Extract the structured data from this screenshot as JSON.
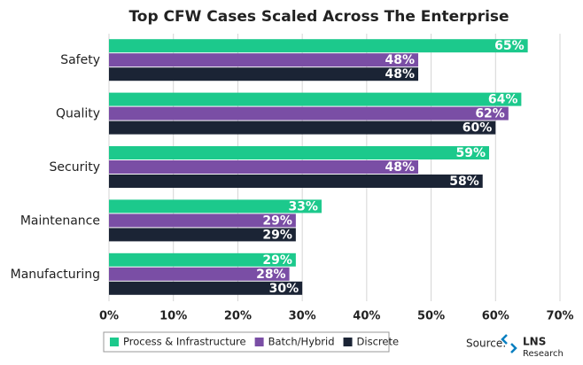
{
  "chart_data": {
    "type": "hbar",
    "title": "Top CFW Cases Scaled Across The Enterprise",
    "categories": [
      "Safety",
      "Quality",
      "Security",
      "Maintenance",
      "Manufacturing"
    ],
    "series": [
      {
        "name": "Process & Infrastructure",
        "color": "#1cc98c",
        "values": [
          65,
          64,
          59,
          33,
          29
        ],
        "value_labels": [
          "65%",
          "64%",
          "59%",
          "33%",
          "29%"
        ]
      },
      {
        "name": "Batch/Hybrid",
        "color": "#7a4ea5",
        "values": [
          48,
          62,
          48,
          29,
          28
        ],
        "value_labels": [
          "48%",
          "62%",
          "48%",
          "29%",
          "28%"
        ]
      },
      {
        "name": "Discrete",
        "color": "#1b2435",
        "values": [
          48,
          60,
          58,
          29,
          30
        ],
        "value_labels": [
          "48%",
          "60%",
          "58%",
          "29%",
          "30%"
        ]
      }
    ],
    "xlim": [
      0,
      70
    ],
    "xticks": [
      {
        "value": 0,
        "label": "0%"
      },
      {
        "value": 10,
        "label": "10%"
      },
      {
        "value": 20,
        "label": "20%"
      },
      {
        "value": 30,
        "label": "30%"
      },
      {
        "value": 40,
        "label": "40%"
      },
      {
        "value": 50,
        "label": "50%"
      },
      {
        "value": 60,
        "label": "60%"
      },
      {
        "value": 70,
        "label": "70%"
      }
    ],
    "grid": true,
    "source": {
      "label": "Source:",
      "logo": "LNS",
      "logo_sub": "Research"
    }
  }
}
